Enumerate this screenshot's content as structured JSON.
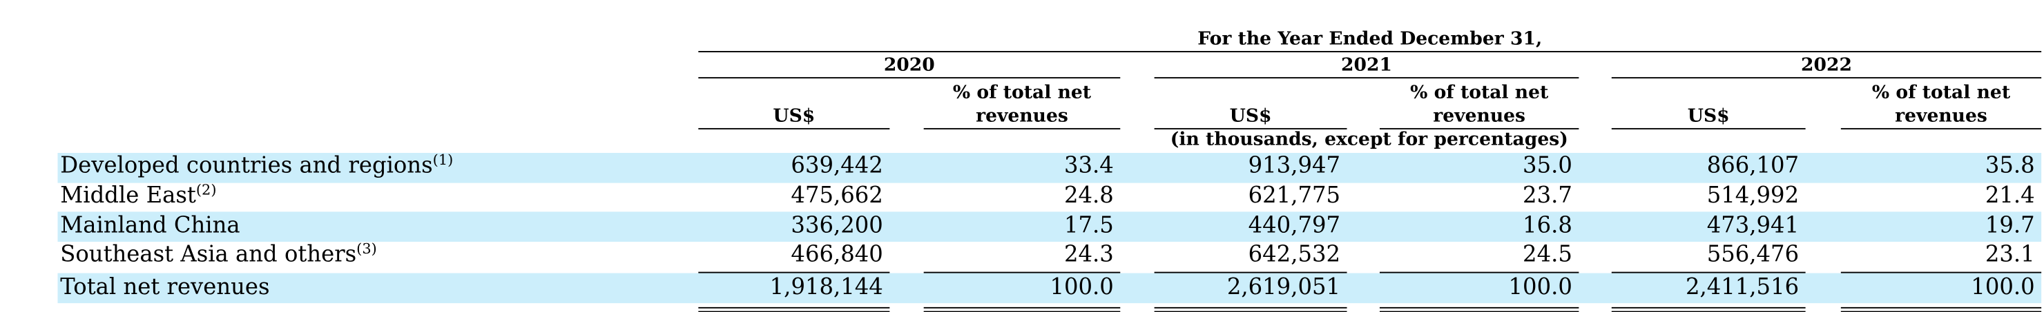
{
  "table": {
    "period_header": "For the Year Ended December 31,",
    "years": [
      "2020",
      "2021",
      "2022"
    ],
    "col_usd": "US$",
    "col_pct_line1": "% of total net",
    "col_pct_line2": "revenues",
    "units_note": "(in thousands, except for percentages)",
    "rows": [
      {
        "label": "Developed countries and regions",
        "note": "(1)",
        "v2020": "639,442",
        "p2020": "33.4",
        "v2021": "913,947",
        "p2021": "35.0",
        "v2022": "866,107",
        "p2022": "35.8"
      },
      {
        "label": "Middle East",
        "note": "(2)",
        "v2020": "475,662",
        "p2020": "24.8",
        "v2021": "621,775",
        "p2021": "23.7",
        "v2022": "514,992",
        "p2022": "21.4"
      },
      {
        "label": "Mainland China",
        "note": "",
        "v2020": "336,200",
        "p2020": "17.5",
        "v2021": "440,797",
        "p2021": "16.8",
        "v2022": "473,941",
        "p2022": "19.7"
      },
      {
        "label": "Southeast Asia and others",
        "note": "(3)",
        "v2020": "466,840",
        "p2020": "24.3",
        "v2021": "642,532",
        "p2021": "24.5",
        "v2022": "556,476",
        "p2022": "23.1"
      },
      {
        "label": "Total net revenues",
        "note": "",
        "v2020": "1,918,144",
        "p2020": "100.0",
        "v2021": "2,619,051",
        "p2021": "100.0",
        "v2022": "2,411,516",
        "p2022": "100.0"
      }
    ]
  },
  "colors": {
    "band": "#cceefb",
    "text": "#000000"
  }
}
